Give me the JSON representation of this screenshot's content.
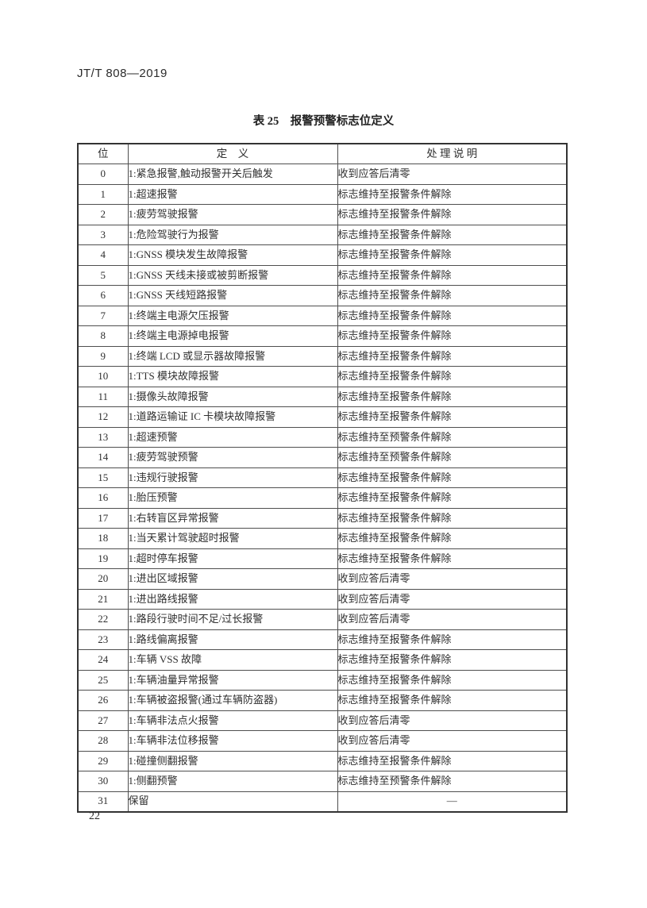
{
  "page": {
    "doc_code": "JT/T 808—2019",
    "page_number": "22"
  },
  "table": {
    "caption": "表 25　报警预警标志位定义",
    "headers": [
      "位",
      "定　义",
      "处 理 说 明"
    ],
    "rows": [
      {
        "bit": "0",
        "definition": "1:紧急报警,触动报警开关后触发",
        "handling": "收到应答后清零"
      },
      {
        "bit": "1",
        "definition": "1:超速报警",
        "handling": "标志维持至报警条件解除"
      },
      {
        "bit": "2",
        "definition": "1:疲劳驾驶报警",
        "handling": "标志维持至报警条件解除"
      },
      {
        "bit": "3",
        "definition": "1:危险驾驶行为报警",
        "handling": "标志维持至报警条件解除"
      },
      {
        "bit": "4",
        "definition": "1:GNSS 模块发生故障报警",
        "handling": "标志维持至报警条件解除"
      },
      {
        "bit": "5",
        "definition": "1:GNSS 天线未接或被剪断报警",
        "handling": "标志维持至报警条件解除"
      },
      {
        "bit": "6",
        "definition": "1:GNSS 天线短路报警",
        "handling": "标志维持至报警条件解除"
      },
      {
        "bit": "7",
        "definition": "1:终端主电源欠压报警",
        "handling": "标志维持至报警条件解除"
      },
      {
        "bit": "8",
        "definition": "1:终端主电源掉电报警",
        "handling": "标志维持至报警条件解除"
      },
      {
        "bit": "9",
        "definition": "1:终端 LCD 或显示器故障报警",
        "handling": "标志维持至报警条件解除"
      },
      {
        "bit": "10",
        "definition": "1:TTS 模块故障报警",
        "handling": "标志维持至报警条件解除"
      },
      {
        "bit": "11",
        "definition": "1:摄像头故障报警",
        "handling": "标志维持至报警条件解除"
      },
      {
        "bit": "12",
        "definition": "1:道路运输证 IC 卡模块故障报警",
        "handling": "标志维持至报警条件解除"
      },
      {
        "bit": "13",
        "definition": "1:超速预警",
        "handling": "标志维持至预警条件解除"
      },
      {
        "bit": "14",
        "definition": "1:疲劳驾驶预警",
        "handling": "标志维持至预警条件解除"
      },
      {
        "bit": "15",
        "definition": "1:违规行驶报警",
        "handling": "标志维持至报警条件解除"
      },
      {
        "bit": "16",
        "definition": "1:胎压预警",
        "handling": "标志维持至报警条件解除"
      },
      {
        "bit": "17",
        "definition": "1:右转盲区异常报警",
        "handling": "标志维持至报警条件解除"
      },
      {
        "bit": "18",
        "definition": "1:当天累计驾驶超时报警",
        "handling": "标志维持至报警条件解除"
      },
      {
        "bit": "19",
        "definition": "1:超时停车报警",
        "handling": "标志维持至报警条件解除"
      },
      {
        "bit": "20",
        "definition": "1:进出区域报警",
        "handling": "收到应答后清零"
      },
      {
        "bit": "21",
        "definition": "1:进出路线报警",
        "handling": "收到应答后清零"
      },
      {
        "bit": "22",
        "definition": "1:路段行驶时间不足/过长报警",
        "handling": "收到应答后清零"
      },
      {
        "bit": "23",
        "definition": "1:路线偏离报警",
        "handling": "标志维持至报警条件解除"
      },
      {
        "bit": "24",
        "definition": "1:车辆 VSS 故障",
        "handling": "标志维持至报警条件解除"
      },
      {
        "bit": "25",
        "definition": "1:车辆油量异常报警",
        "handling": "标志维持至报警条件解除"
      },
      {
        "bit": "26",
        "definition": "1:车辆被盗报警(通过车辆防盗器)",
        "handling": "标志维持至报警条件解除"
      },
      {
        "bit": "27",
        "definition": "1:车辆非法点火报警",
        "handling": "收到应答后清零"
      },
      {
        "bit": "28",
        "definition": "1:车辆非法位移报警",
        "handling": "收到应答后清零"
      },
      {
        "bit": "29",
        "definition": "1:碰撞侧翻报警",
        "handling": "标志维持至报警条件解除"
      },
      {
        "bit": "30",
        "definition": "1:侧翻预警",
        "handling": "标志维持至预警条件解除"
      },
      {
        "bit": "31",
        "definition": "保留",
        "handling": "—"
      }
    ]
  }
}
